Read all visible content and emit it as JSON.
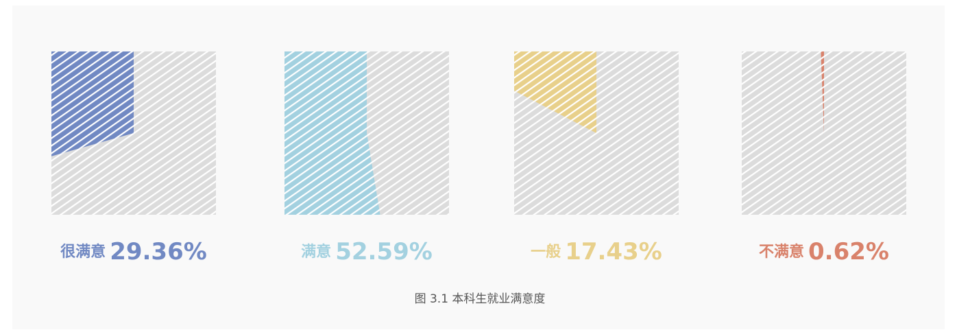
{
  "chart_data": [
    {
      "type": "pie",
      "categories": [
        "很满意"
      ],
      "values": [
        29.36
      ],
      "value_labels": [
        "29.36%"
      ],
      "color": "#7189c3"
    },
    {
      "type": "pie",
      "categories": [
        "满意"
      ],
      "values": [
        52.59
      ],
      "value_labels": [
        "52.59%"
      ],
      "color": "#a3d1e0"
    },
    {
      "type": "pie",
      "categories": [
        "一般"
      ],
      "values": [
        17.43
      ],
      "value_labels": [
        "17.43%"
      ],
      "color": "#e8d08b"
    },
    {
      "type": "pie",
      "categories": [
        "不满意"
      ],
      "values": [
        0.62
      ],
      "value_labels": [
        "0.62%"
      ],
      "color": "#d9826b"
    }
  ],
  "caption": "图 3.1 本科生就业满意度"
}
